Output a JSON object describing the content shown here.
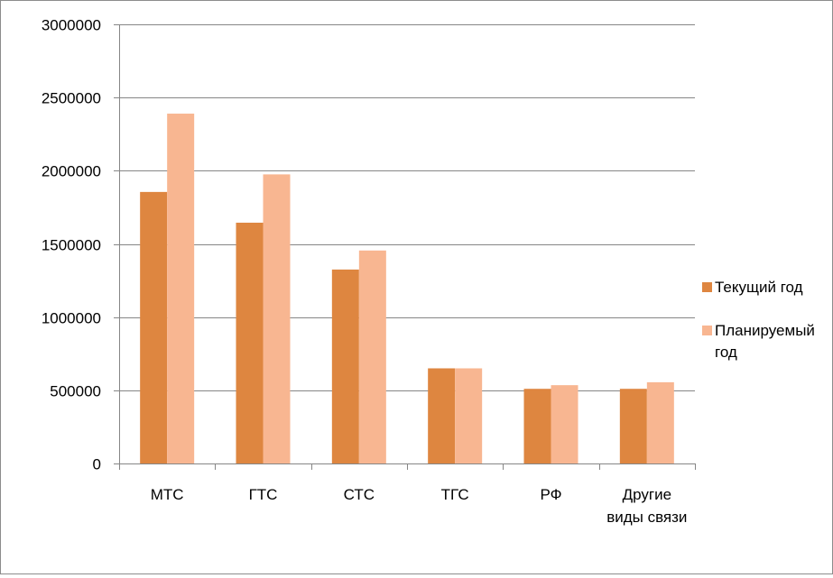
{
  "chart_data": {
    "type": "bar",
    "categories": [
      "МТС",
      "ГТС",
      "СТС",
      "ТГС",
      "РФ",
      "Другие виды связи"
    ],
    "series": [
      {
        "name": "Текущий год",
        "color": "#de8640",
        "values": [
          1855000,
          1645000,
          1325000,
          650000,
          510000,
          510000
        ]
      },
      {
        "name": "Планируемый год",
        "color": "#f8b691",
        "values": [
          2390000,
          1975000,
          1455000,
          650000,
          535000,
          555000
        ]
      }
    ],
    "ylim": [
      0,
      3000000
    ],
    "yticks": [
      "0",
      "500000",
      "1000000",
      "1500000",
      "2000000",
      "2500000",
      "3000000"
    ],
    "grid": true,
    "legend_position": "right",
    "title": "",
    "xlabel": "",
    "ylabel": ""
  }
}
